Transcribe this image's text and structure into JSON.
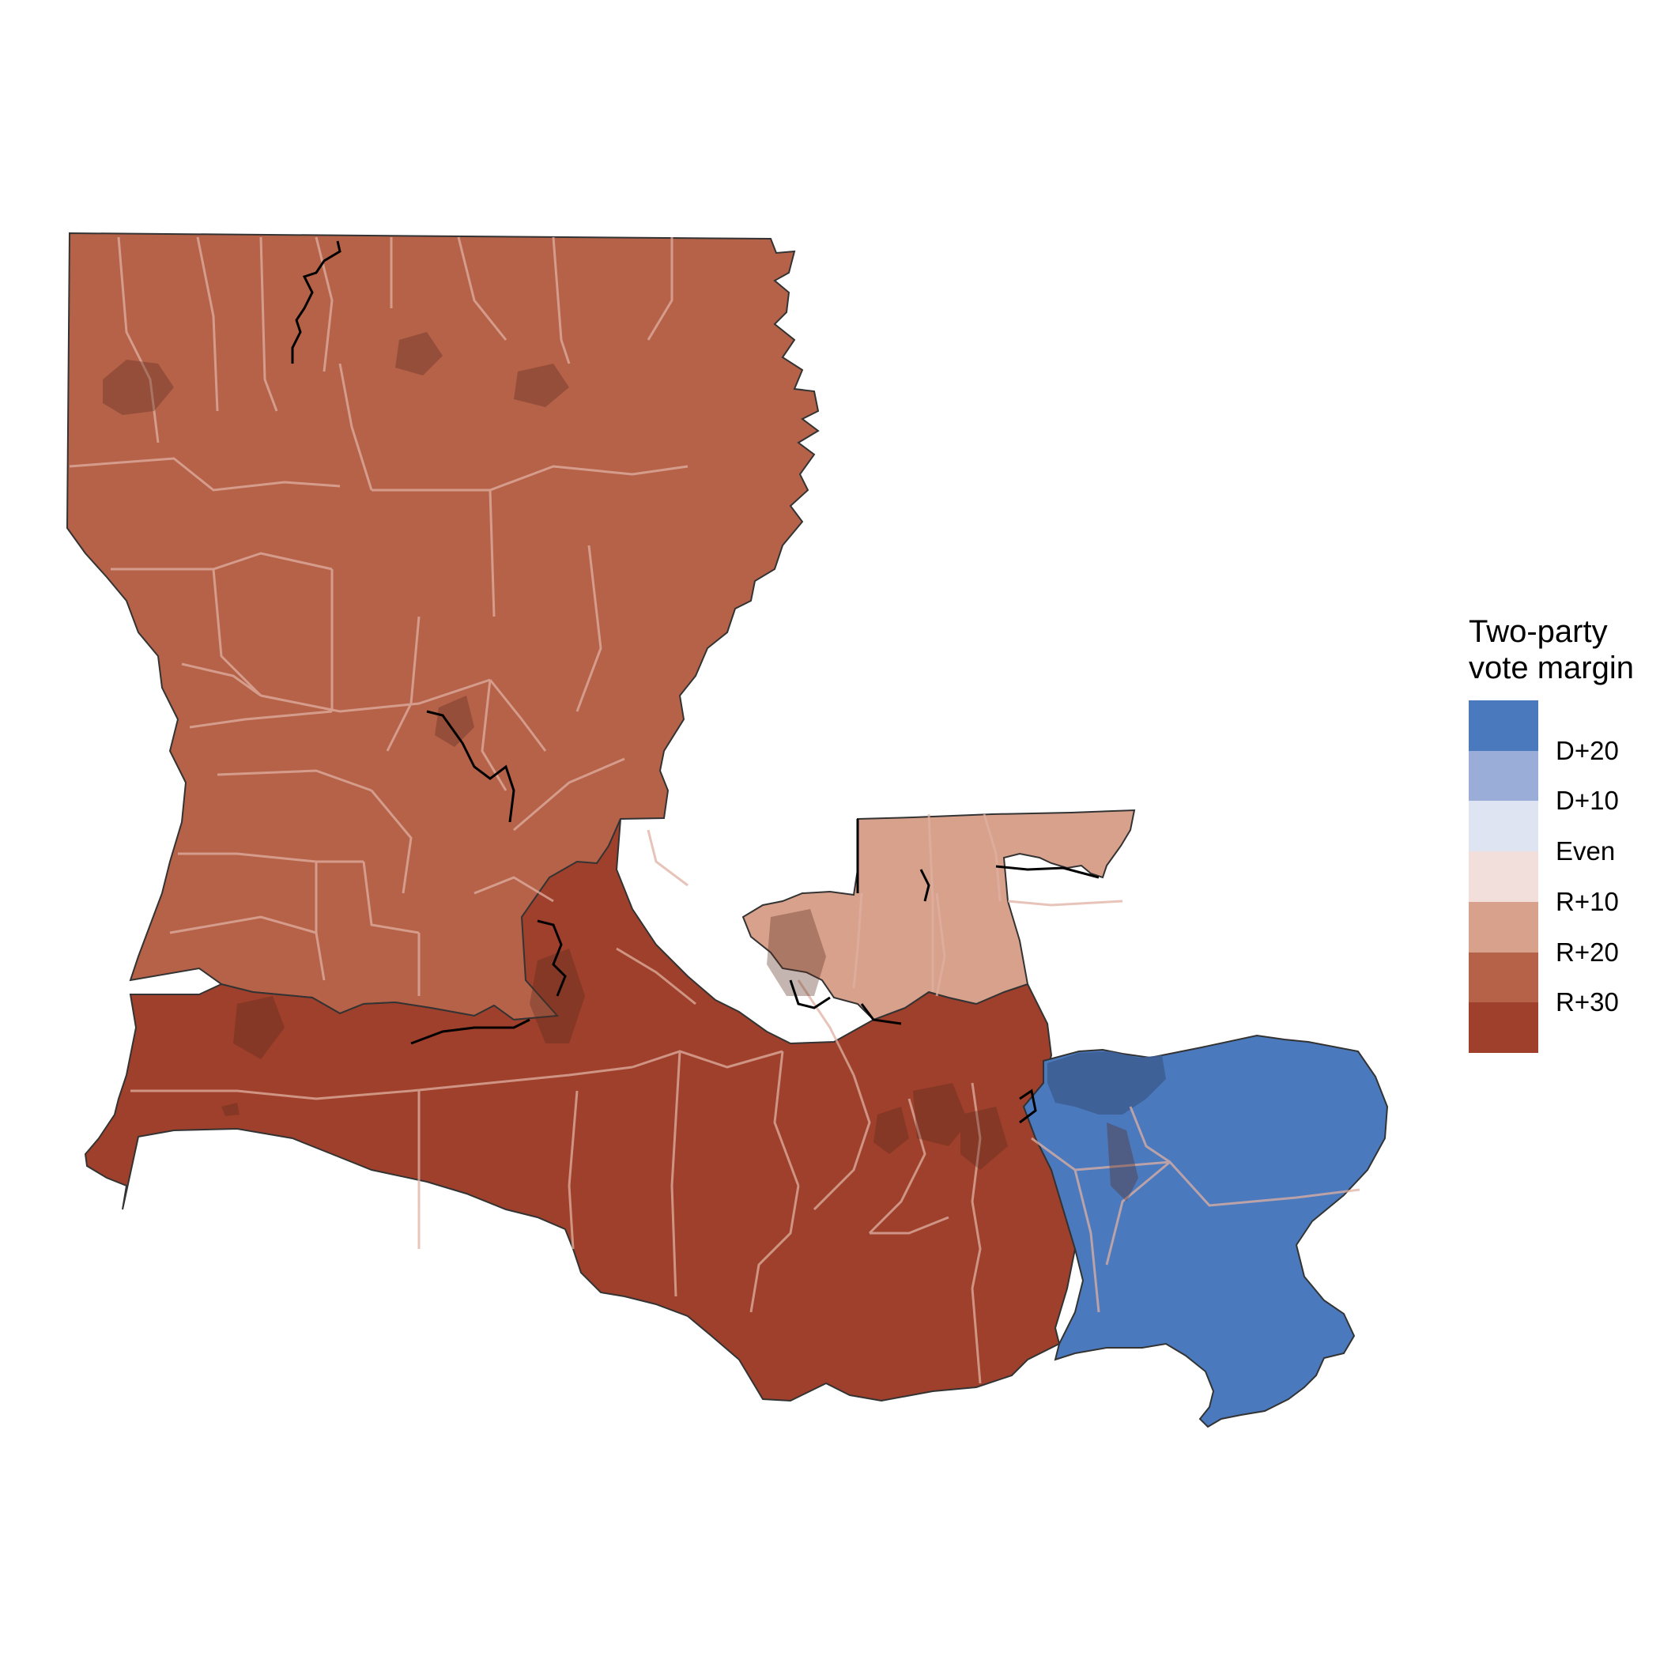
{
  "legend": {
    "title": "Two-party\nvote margin",
    "bins": [
      {
        "color": "#4a79bd"
      },
      {
        "color": "#9aadd8"
      },
      {
        "color": "#dfe4f2"
      },
      {
        "color": "#f2dfdb"
      },
      {
        "color": "#d7a18c"
      },
      {
        "color": "#b56249"
      },
      {
        "color": "#9e402b"
      }
    ],
    "labels": [
      "D+20",
      "D+10",
      "Even",
      "R+10",
      "R+20",
      "R+30"
    ]
  },
  "map": {
    "region": "Louisiana",
    "districts": [
      {
        "id": "north",
        "margin": "R+20 to R+30",
        "color": "#b56249"
      },
      {
        "id": "south",
        "margin": "R+30 or more",
        "color": "#9e402b"
      },
      {
        "id": "capital",
        "margin": "R+10 to R+20",
        "color": "#d7a18c"
      },
      {
        "id": "metro",
        "margin": "D+20 or more",
        "color": "#4a79bd"
      }
    ],
    "colors": {
      "parish_border": "#e0b0a2",
      "outline": "#333333",
      "district_boundary": "#000000",
      "urban_overlay": "#5a2a1e"
    }
  }
}
